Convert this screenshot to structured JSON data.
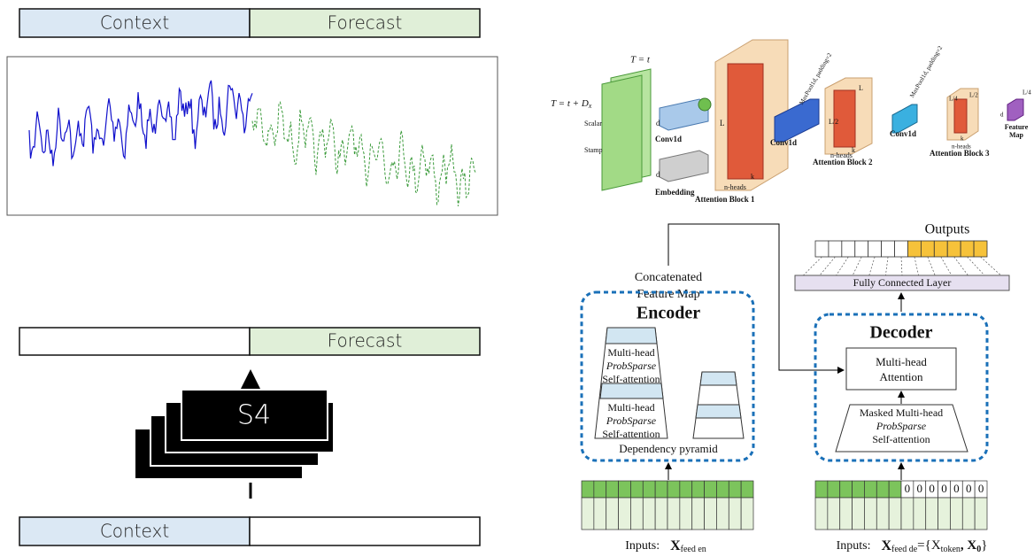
{
  "left": {
    "top_bar": {
      "context": "Context",
      "forecast": "Forecast"
    },
    "middle_bar": {
      "forecast": "Forecast"
    },
    "model": "S4",
    "bottom_bar": {
      "context": "Context"
    }
  },
  "architecture": {
    "t_label": "T = t",
    "t_dx_label": {
      "main": "T = t + D",
      "sub": "x"
    },
    "scalar": "Scalar",
    "stamp": "Stamp",
    "embedding": "Embedding",
    "conv": [
      "Conv1d",
      "Conv1d",
      "Conv1d"
    ],
    "blocks": [
      "Attention Block 1",
      "Attention Block 2",
      "Attention Block 3"
    ],
    "heads": [
      "n-heads",
      "n-heads",
      "n-heads"
    ],
    "maxpool": [
      "MaxPool1d, padding=2",
      "MaxPool1d, padding=2"
    ],
    "dims": [
      "d",
      "d",
      "L",
      "L",
      "L/2",
      "L/2",
      "L/4",
      "L/4",
      "d"
    ],
    "k": [
      "k",
      "k",
      "k"
    ],
    "feature_map": [
      "Feature",
      "Map"
    ]
  },
  "informer": {
    "concat": [
      "Concatenated",
      "Feature Map"
    ],
    "encoder": "Encoder",
    "attention": [
      "Multi-head",
      "ProbSparse",
      "Self-attention"
    ],
    "pyramid": "Dependency pyramid",
    "outputs": "Outputs",
    "fc": "Fully Connected Layer",
    "decoder": "Decoder",
    "dec_attention": [
      "Multi-head",
      "Attention"
    ],
    "masked": [
      "Masked Multi-head",
      "ProbSparse",
      "Self-attention"
    ],
    "zeros": [
      "0",
      "0",
      "0",
      "0",
      "0",
      "0",
      "0"
    ],
    "enc_input": {
      "prefix": "Inputs:",
      "x": "X",
      "sub": "feed en"
    },
    "dec_input": {
      "prefix": "Inputs:",
      "x": "X",
      "sub": "feed de",
      "eq": "={X",
      "sub2": "token",
      "comma": ", X",
      "sub3": "0",
      "close": "}"
    }
  }
}
